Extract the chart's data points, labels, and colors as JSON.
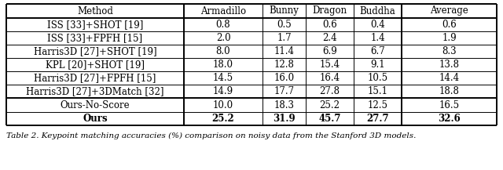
{
  "columns": [
    "Method",
    "Armadillo",
    "Bunny",
    "Dragon",
    "Buddha",
    "Average"
  ],
  "rows": [
    [
      "ISS [33]+SHOT [19]",
      "0.8",
      "0.5",
      "0.6",
      "0.4",
      "0.6"
    ],
    [
      "ISS [33]+FPFH [15]",
      "2.0",
      "1.7",
      "2.4",
      "1.4",
      "1.9"
    ],
    [
      "Harris3D [27]+SHOT [19]",
      "8.0",
      "11.4",
      "6.9",
      "6.7",
      "8.3"
    ],
    [
      "KPL [20]+SHOT [19]",
      "18.0",
      "12.8",
      "15.4",
      "9.1",
      "13.8"
    ],
    [
      "Harris3D [27]+FPFH [15]",
      "14.5",
      "16.0",
      "16.4",
      "10.5",
      "14.4"
    ],
    [
      "Harris3D [27]+3DMatch [32]",
      "14.9",
      "17.7",
      "27.8",
      "15.1",
      "18.8"
    ]
  ],
  "rows_sep": [
    [
      "Ours-No-Score",
      "10.0",
      "18.3",
      "25.2",
      "12.5",
      "16.5"
    ],
    [
      "Ours",
      "25.2",
      "31.9",
      "45.7",
      "27.7",
      "32.6"
    ]
  ],
  "sep_bold": [
    false,
    true
  ],
  "caption": "Table 2. Keypoint matching accuracies (%) comparison on noisy data from the Stanford 3D models.",
  "background_color": "#ffffff",
  "line_color": "#000000",
  "font_size": 8.5,
  "caption_font_size": 7.5
}
